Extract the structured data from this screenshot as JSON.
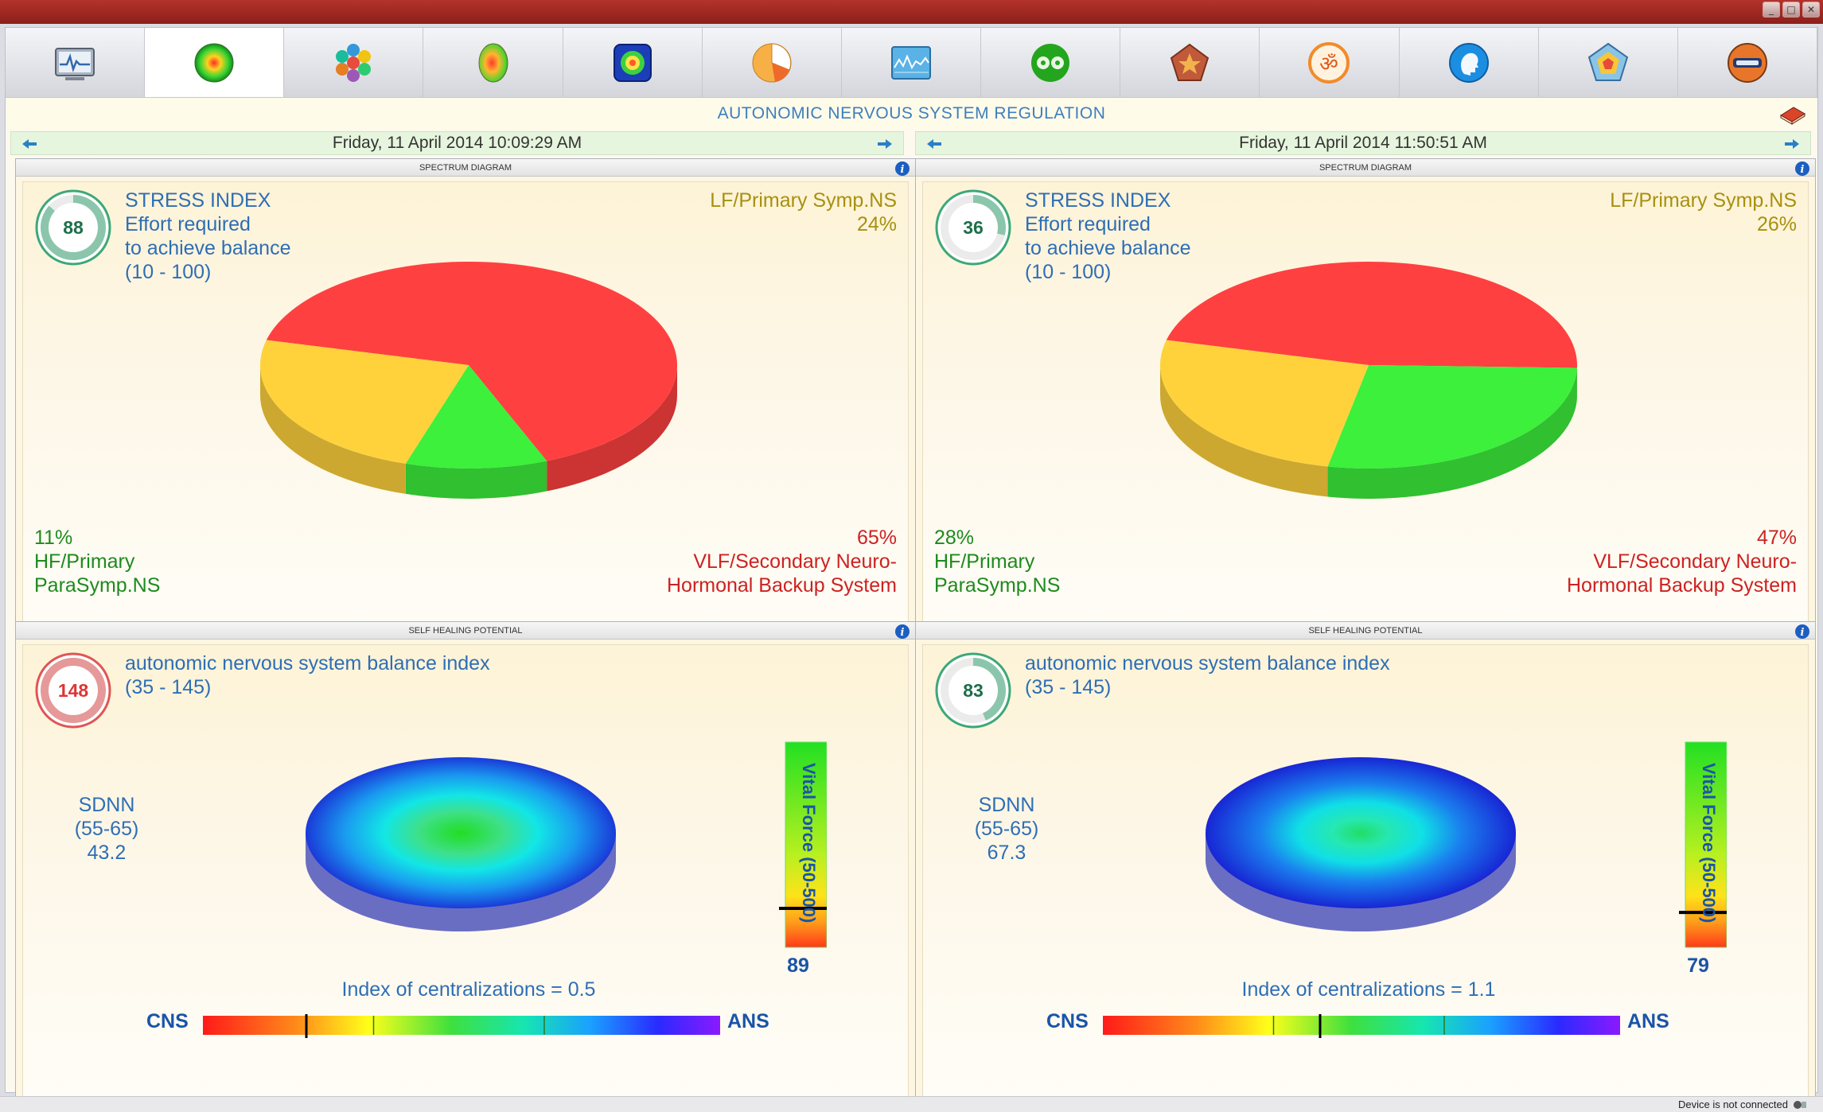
{
  "window": {
    "buttons": [
      "_",
      "□",
      "✕"
    ]
  },
  "toolbar": {
    "items": [
      {
        "icon": "ecg-monitor-icon"
      },
      {
        "icon": "radial-sphere-icon"
      },
      {
        "icon": "molecule-icon"
      },
      {
        "icon": "brain-map-icon"
      },
      {
        "icon": "body-scan-icon"
      },
      {
        "icon": "pie-chart-icon"
      },
      {
        "icon": "wave-graph-icon"
      },
      {
        "icon": "yin-yang-icon"
      },
      {
        "icon": "pentagon-icon"
      },
      {
        "icon": "om-symbol-icon"
      },
      {
        "icon": "head-profile-icon"
      },
      {
        "icon": "radar-chart-icon"
      },
      {
        "icon": "exit-icon"
      }
    ],
    "active_index": 1
  },
  "banner": {
    "title": "AUTONOMIC NERVOUS SYSTEM REGULATION"
  },
  "sessions": [
    {
      "date": "Friday, 11 April 2014 10:09:29 AM",
      "spectrum": {
        "header": "SPECTRUM DIAGRAM",
        "stress_value": "88",
        "stress_title": "STRESS INDEX",
        "stress_line2": "Effort required",
        "stress_line3": "to achieve balance",
        "stress_range": "(10 - 100)",
        "lf_label": "LF/Primary Symp.NS",
        "lf_pct": "24%",
        "hf_pct": "11%",
        "hf_label1": "HF/Primary",
        "hf_label2": "ParaSymp.NS",
        "vlf_pct": "65%",
        "vlf_label1": "VLF/Secondary Neuro-",
        "vlf_label2": "Hormonal Backup System"
      },
      "healing": {
        "header": "SELF HEALING POTENTIAL",
        "balance_value": "148",
        "balance_title": "autonomic nervous system balance index",
        "balance_range": "(35 - 145)",
        "sdnn_label": "SDNN",
        "sdnn_range": "(55-65)",
        "sdnn_value": "43.2",
        "vital_label": "Vital Force (50-500)",
        "vital_value": "89",
        "centralization": "Index of centralizations = 0.5",
        "cns": "CNS",
        "ans": "ANS"
      }
    },
    {
      "date": "Friday, 11 April 2014 11:50:51 AM",
      "spectrum": {
        "header": "SPECTRUM DIAGRAM",
        "stress_value": "36",
        "stress_title": "STRESS INDEX",
        "stress_line2": "Effort required",
        "stress_line3": "to achieve balance",
        "stress_range": "(10 - 100)",
        "lf_label": "LF/Primary Symp.NS",
        "lf_pct": "26%",
        "hf_pct": "28%",
        "hf_label1": "HF/Primary",
        "hf_label2": "ParaSymp.NS",
        "vlf_pct": "47%",
        "vlf_label1": "VLF/Secondary Neuro-",
        "vlf_label2": "Hormonal Backup System"
      },
      "healing": {
        "header": "SELF HEALING POTENTIAL",
        "balance_value": "83",
        "balance_title": "autonomic nervous system balance index",
        "balance_range": "(35 - 145)",
        "sdnn_label": "SDNN",
        "sdnn_range": "(55-65)",
        "sdnn_value": "67.3",
        "vital_label": "Vital Force (50-500)",
        "vital_value": "79",
        "centralization": "Index of centralizations = 1.1",
        "cns": "CNS",
        "ans": "ANS"
      }
    }
  ],
  "status": {
    "text": "Device is not connected"
  },
  "chart_data": [
    {
      "type": "pie",
      "categories": [
        "VLF/Secondary Neuro-Hormonal Backup System",
        "HF/Primary ParaSymp.NS",
        "LF/Primary Symp.NS"
      ],
      "values": [
        65,
        11,
        24
      ],
      "colors": [
        "#ff4040",
        "#3cf03c",
        "#ffd23c"
      ]
    },
    {
      "type": "pie",
      "categories": [
        "VLF/Secondary Neuro-Hormonal Backup System",
        "HF/Primary ParaSymp.NS",
        "LF/Primary Symp.NS"
      ],
      "values": [
        47,
        28,
        26
      ],
      "colors": [
        "#ff4040",
        "#3cf03c",
        "#ffd23c"
      ]
    }
  ],
  "gauges": {
    "stress": [
      {
        "value": 88,
        "range": [
          10,
          100
        ],
        "color": "#3ca878"
      },
      {
        "value": 36,
        "range": [
          10,
          100
        ],
        "color": "#3ca878"
      }
    ],
    "balance": [
      {
        "value": 148,
        "range": [
          35,
          145
        ],
        "color": "#e05555"
      },
      {
        "value": 83,
        "range": [
          35,
          145
        ],
        "color": "#3ca878"
      }
    ],
    "vital_level": [
      0.19,
      0.17
    ],
    "centralization_marker": [
      0.2,
      0.42
    ],
    "disc_center": [
      "#22dd22",
      "#22dd66"
    ]
  },
  "colors": {
    "banner": "#3d7fbe",
    "date_bar": "#e6f5dd",
    "panel_bg": "#fdf6e2"
  }
}
